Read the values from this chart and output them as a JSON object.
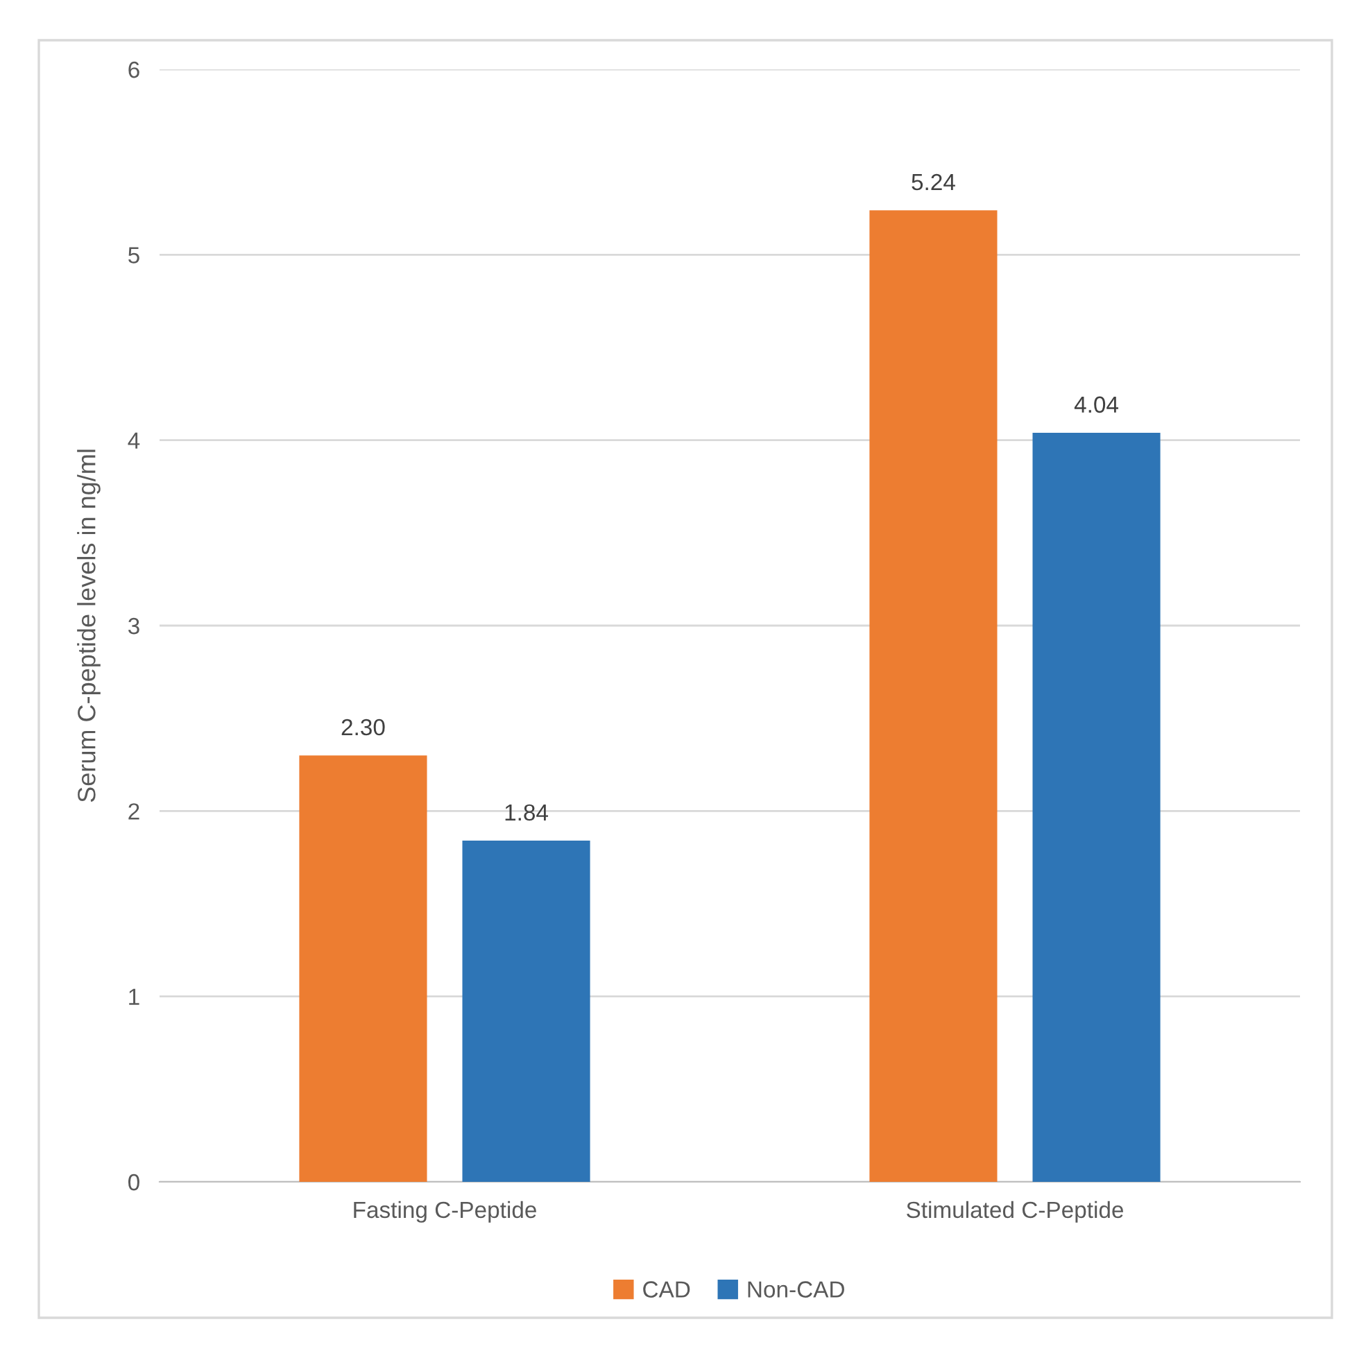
{
  "chart_data": {
    "type": "bar",
    "ylabel": "Serum C-peptide levels in ng/ml",
    "categories": [
      "Fasting C-Peptide",
      "Stimulated C-Peptide"
    ],
    "series": [
      {
        "name": "CAD",
        "color": "#ed7d31",
        "values": [
          2.3,
          5.24
        ],
        "value_labels": [
          "2.30",
          "5.24"
        ]
      },
      {
        "name": "Non-CAD",
        "color": "#2e75b6",
        "values": [
          1.84,
          4.04
        ],
        "value_labels": [
          "1.84",
          "4.04"
        ]
      }
    ],
    "ylim": [
      0,
      6
    ],
    "yticks": [
      0,
      1,
      2,
      3,
      4,
      5,
      6
    ],
    "grid": "y",
    "legend": "bottom"
  }
}
